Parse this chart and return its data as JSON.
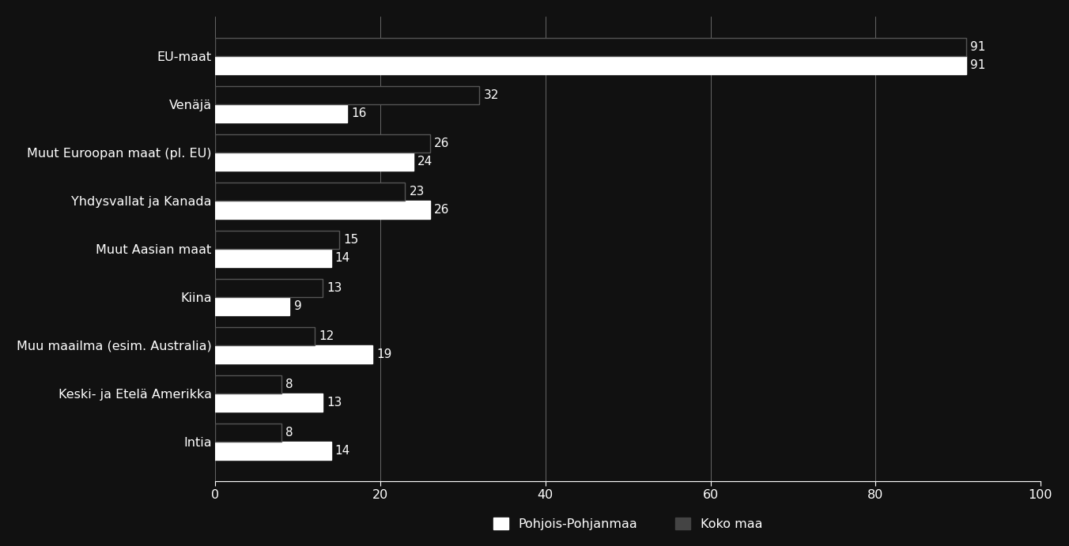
{
  "categories": [
    "EU-maat",
    "Venäjä",
    "Muut Euroopan maat (pl. EU)",
    "Yhdysvallat ja Kanada",
    "Muut Aasian maat",
    "Kiina",
    "Muu maailma (esim. Australia)",
    "Keski- ja Etelä Amerikka",
    "Intia"
  ],
  "pohjois_pohjanmaa": [
    91,
    16,
    24,
    26,
    14,
    9,
    19,
    13,
    14
  ],
  "koko_maa": [
    91,
    32,
    26,
    23,
    15,
    13,
    12,
    8,
    8
  ],
  "bar_color_pp": "#ffffff",
  "bar_color_km": "#111111",
  "background_color": "#111111",
  "plot_bg_color": "#111111",
  "text_color": "#ffffff",
  "xlim": [
    0,
    100
  ],
  "legend_labels": [
    "Pohjois-Pohjanmaa",
    "Koko maa"
  ],
  "bar_height": 0.38,
  "label_fontsize": 11.5,
  "tick_fontsize": 11.5,
  "legend_fontsize": 11.5,
  "value_fontsize": 11
}
